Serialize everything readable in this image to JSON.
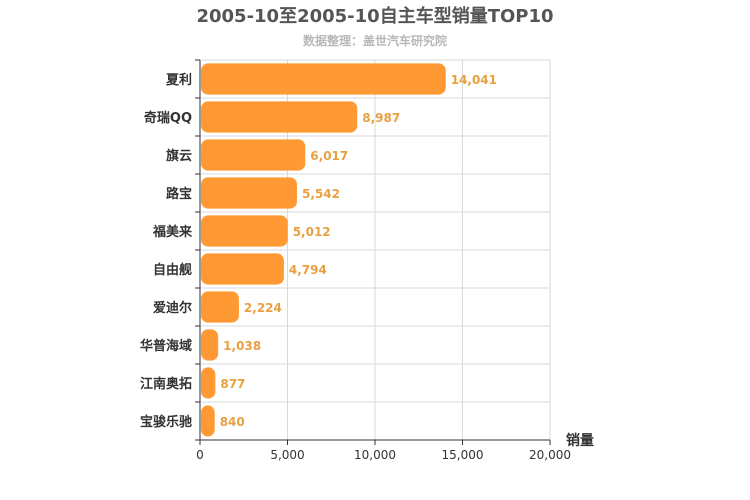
{
  "chart_data": {
    "type": "bar",
    "orientation": "horizontal",
    "title": "2005-10至2005-10自主车型销量TOP10",
    "subtitle": "数据整理：盖世汽车研究院",
    "xlabel": "销量",
    "ylabel": "",
    "categories": [
      "夏利",
      "奇瑞QQ",
      "旗云",
      "路宝",
      "福美来",
      "自由舰",
      "爱迪尔",
      "华普海域",
      "江南奥拓",
      "宝骏乐驰"
    ],
    "values": [
      14041,
      8987,
      6017,
      5542,
      5012,
      4794,
      2224,
      1038,
      877,
      840
    ],
    "value_labels": [
      "14,041",
      "8,987",
      "6,017",
      "5,542",
      "5,012",
      "4,794",
      "2,224",
      "1,038",
      "877",
      "840"
    ],
    "xlim": [
      0,
      20000
    ],
    "xticks": [
      0,
      5000,
      10000,
      15000,
      20000
    ],
    "xtick_labels": [
      "0",
      "5,000",
      "10,000",
      "15,000",
      "20,000"
    ],
    "grid": true,
    "legend": "none",
    "colors": {
      "bar": "#ff9933",
      "value_label": "#e8a040",
      "grid": "#d9d9d9",
      "title": "#555555",
      "subtitle": "#b8b8b8"
    }
  }
}
